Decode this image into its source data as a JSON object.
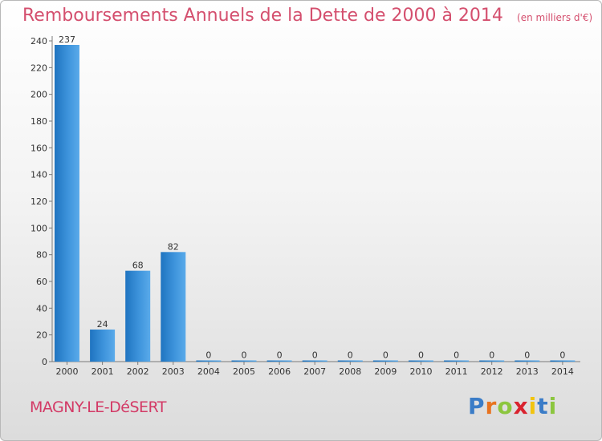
{
  "chart_data": {
    "type": "bar",
    "title": "Remboursements Annuels de la Dette de 2000 à 2014",
    "subtitle": "(en milliers d'€)",
    "categories": [
      "2000",
      "2001",
      "2002",
      "2003",
      "2004",
      "2005",
      "2006",
      "2007",
      "2008",
      "2009",
      "2010",
      "2011",
      "2012",
      "2013",
      "2014"
    ],
    "values": [
      237,
      24,
      68,
      82,
      0,
      0,
      0,
      0,
      0,
      0,
      0,
      0,
      0,
      0,
      0
    ],
    "ylim": [
      0,
      240
    ],
    "yticks": [
      0,
      20,
      40,
      60,
      80,
      100,
      120,
      140,
      160,
      180,
      200,
      220,
      240
    ],
    "xlabel": "",
    "ylabel": "",
    "grid": false,
    "bar_color": "#2f86cf"
  },
  "footer": {
    "commune": "MAGNY-LE-DéSERT"
  },
  "logo": {
    "text": "Proxiti",
    "letters": [
      "P",
      "r",
      "o",
      "x",
      "i",
      "t",
      "i"
    ],
    "colors": [
      "#3a7cc7",
      "#e8731f",
      "#8cc63f",
      "#d9232f",
      "#f1c40f",
      "#3a7cc7",
      "#8cc63f"
    ]
  }
}
